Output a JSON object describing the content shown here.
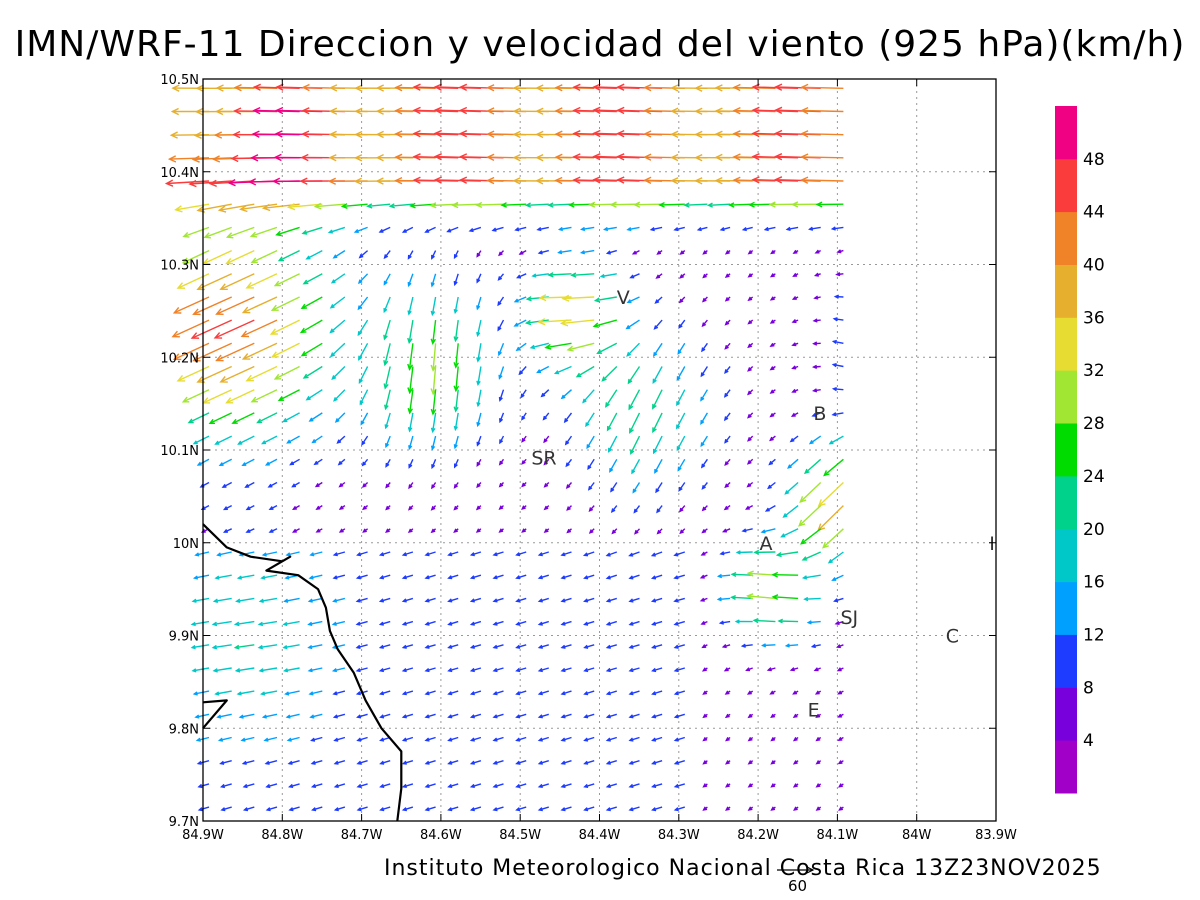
{
  "title": "IMN/WRF-11 Direccion y velocidad del viento (925 hPa)(km/h)",
  "footer": "Instituto Meteorologico Nacional Costa Rica  13Z23NOV2025",
  "reference_vector": {
    "label": "60",
    "speed": 60
  },
  "map": {
    "lon_range": [
      -84.9,
      -83.9
    ],
    "lat_range": [
      9.7,
      10.5
    ],
    "grid": true,
    "lon_ticks": [
      {
        "value": -84.9,
        "label": "84.9W"
      },
      {
        "value": -84.8,
        "label": "84.8W"
      },
      {
        "value": -84.7,
        "label": "84.7W"
      },
      {
        "value": -84.6,
        "label": "84.6W"
      },
      {
        "value": -84.5,
        "label": "84.5W"
      },
      {
        "value": -84.4,
        "label": "84.4W"
      },
      {
        "value": -84.3,
        "label": "84.3W"
      },
      {
        "value": -84.2,
        "label": "84.2W"
      },
      {
        "value": -84.1,
        "label": "84.1W"
      },
      {
        "value": -84.0,
        "label": "84W"
      },
      {
        "value": -83.9,
        "label": "83.9W"
      }
    ],
    "lat_ticks": [
      {
        "value": 9.7,
        "label": "9.7N"
      },
      {
        "value": 9.8,
        "label": "9.8N"
      },
      {
        "value": 9.9,
        "label": "9.9N"
      },
      {
        "value": 10.0,
        "label": "10N"
      },
      {
        "value": 10.1,
        "label": "10.1N"
      },
      {
        "value": 10.2,
        "label": "10.2N"
      },
      {
        "value": 10.3,
        "label": "10.3N"
      },
      {
        "value": 10.4,
        "label": "10.4N"
      },
      {
        "value": 10.5,
        "label": "10.5N"
      }
    ],
    "cities": [
      {
        "label": "V",
        "lon": -84.37,
        "lat": 10.265
      },
      {
        "label": "B",
        "lon": -84.122,
        "lat": 10.14
      },
      {
        "label": "SR",
        "lon": -84.47,
        "lat": 10.092
      },
      {
        "label": "A",
        "lon": -84.19,
        "lat": 10.0
      },
      {
        "label": "I",
        "lon": -83.905,
        "lat": 10.0
      },
      {
        "label": "SJ",
        "lon": -84.085,
        "lat": 9.92
      },
      {
        "label": "C",
        "lon": -83.955,
        "lat": 9.9
      },
      {
        "label": "E",
        "lon": -84.13,
        "lat": 9.82
      }
    ],
    "coastline": [
      [
        [
          -84.9,
          10.02
        ],
        [
          -84.87,
          9.995
        ],
        [
          -84.84,
          9.985
        ],
        [
          -84.8,
          9.98
        ],
        [
          -84.79,
          9.985
        ],
        [
          -84.82,
          9.97
        ],
        [
          -84.78,
          9.965
        ],
        [
          -84.755,
          9.95
        ],
        [
          -84.745,
          9.93
        ],
        [
          -84.74,
          9.905
        ],
        [
          -84.73,
          9.885
        ],
        [
          -84.71,
          9.86
        ],
        [
          -84.695,
          9.83
        ],
        [
          -84.675,
          9.8
        ],
        [
          -84.65,
          9.775
        ],
        [
          -84.65,
          9.735
        ],
        [
          -84.655,
          9.7
        ]
      ],
      [
        [
          -84.9,
          9.8
        ],
        [
          -84.87,
          9.83
        ],
        [
          -84.9,
          9.828
        ]
      ]
    ]
  },
  "colorbar": {
    "colors": [
      "#a000c8",
      "#7800dc",
      "#1e3cff",
      "#00a0ff",
      "#00c8c8",
      "#00d28c",
      "#00dc00",
      "#a0e632",
      "#e6dc32",
      "#e6af2d",
      "#f08228",
      "#fa3c3c",
      "#f00082"
    ],
    "tick_labels": [
      "4",
      "8",
      "12",
      "16",
      "20",
      "24",
      "28",
      "32",
      "36",
      "40",
      "44",
      "48"
    ]
  },
  "vector_field": {
    "type": "wind-vectors",
    "units": "km/h",
    "level": "925 hPa",
    "lon_start": -84.9,
    "lon_step": 0.02857,
    "lat_start": 10.49,
    "lat_step": -0.025,
    "cols": 29,
    "rows": 32,
    "u_mid": -2.0,
    "v_mid": -1.0
  }
}
